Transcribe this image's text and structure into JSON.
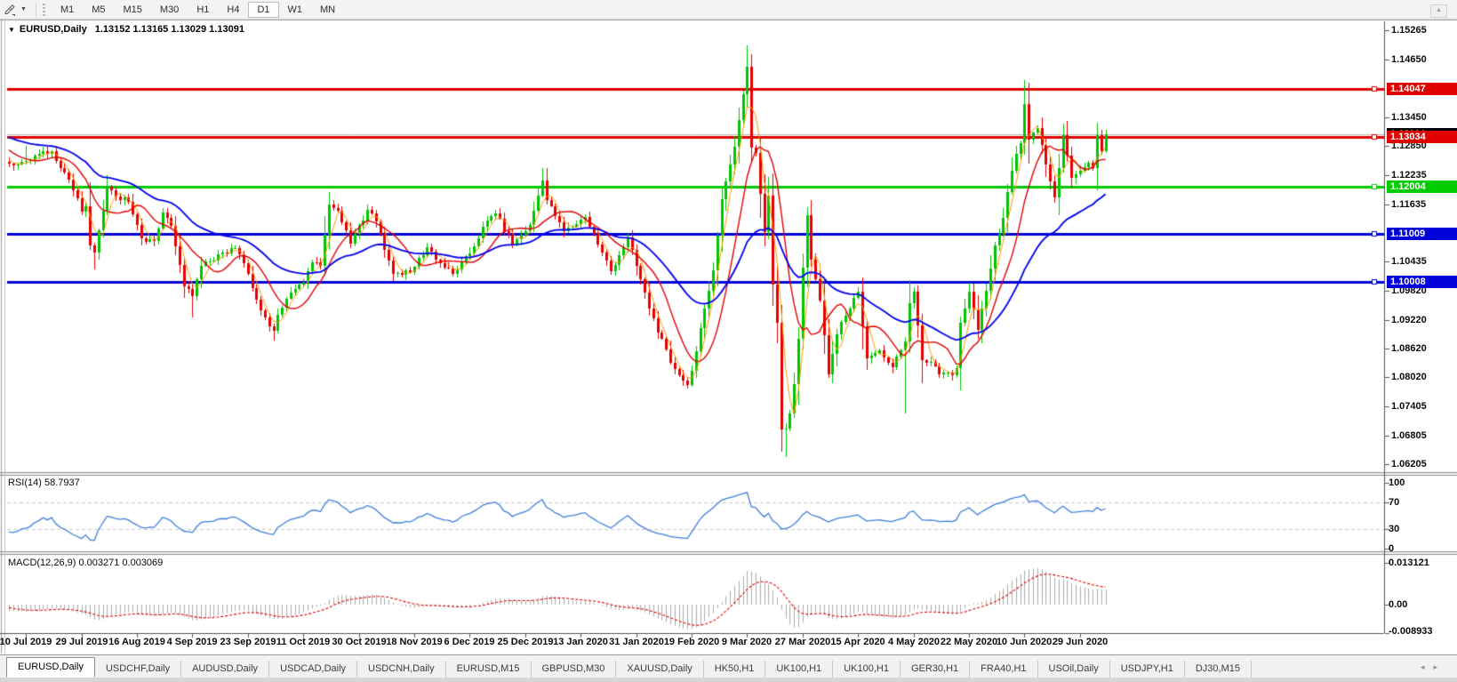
{
  "toolbar": {
    "timeframes": [
      "M1",
      "M5",
      "M15",
      "M30",
      "H1",
      "H4",
      "D1",
      "W1",
      "MN"
    ],
    "active_timeframe": "D1",
    "icons": {
      "drawing_tool": "pencil-draw-icon",
      "dropdown_caret": "▼",
      "scroll_up": "▲"
    }
  },
  "chart_title": {
    "caret": "▼",
    "symbol": "EURUSD,Daily",
    "ohlc_text": "1.13152 1.13165 1.13029 1.13091"
  },
  "chart_data": {
    "type": "candlestick",
    "symbol": "EURUSD",
    "timeframe": "Daily",
    "open": "1.13152",
    "high": "1.13165",
    "low": "1.13029",
    "close": "1.13091",
    "y_axis_ticks": [
      1.15265,
      1.1465,
      1.1345,
      1.1285,
      1.12235,
      1.11635,
      1.10435,
      1.0982,
      1.0922,
      1.0862,
      1.0802,
      1.07405,
      1.06805,
      1.06205
    ],
    "x_axis_dates": [
      "10 Jul 2019",
      "29 Jul 2019",
      "16 Aug 2019",
      "4 Sep 2019",
      "23 Sep 2019",
      "11 Oct 2019",
      "30 Oct 2019",
      "18 Nov 2019",
      "6 Dec 2019",
      "25 Dec 2019",
      "13 Jan 2020",
      "31 Jan 2020",
      "19 Feb 2020",
      "9 Mar 2020",
      "27 Mar 2020",
      "15 Apr 2020",
      "4 May 2020",
      "22 May 2020",
      "10 Jun 2020",
      "29 Jun 2020"
    ],
    "horizontal_lines": [
      {
        "price": 1.14047,
        "label": "1.14047",
        "color": "#e00000"
      },
      {
        "price": 1.13034,
        "label": "1.13034",
        "color": "#e00000"
      },
      {
        "price": 1.12004,
        "label": "1.12004",
        "color": "#00cc00"
      },
      {
        "price": 1.11009,
        "label": "1.11009",
        "color": "#0000d9"
      },
      {
        "price": 1.10008,
        "label": "1.10008",
        "color": "#0000d9"
      }
    ],
    "current_bid": {
      "price": 1.13091,
      "label": "1.13091",
      "badge_color": "#000000",
      "line_color": "#b9b9b9"
    },
    "candle_colors": {
      "up": "#00c400",
      "down": "#e60000"
    },
    "moving_averages": [
      {
        "name": "fast",
        "type": "sma",
        "period": 4,
        "color": "#ff9800"
      },
      {
        "name": "medium",
        "type": "sma",
        "period": 10,
        "color": "#e00000"
      },
      {
        "name": "slow",
        "type": "ema",
        "period": 34,
        "color": "#0000ee"
      }
    ],
    "price_anchors": [
      [
        0,
        1.1248
      ],
      [
        4,
        1.1253
      ],
      [
        7,
        1.1268
      ],
      [
        10,
        1.1274
      ],
      [
        14,
        1.1215
      ],
      [
        17,
        1.1148
      ],
      [
        18,
        1.1158
      ],
      [
        19,
        1.1077
      ],
      [
        20,
        1.1062
      ],
      [
        21,
        1.1108
      ],
      [
        23,
        1.12
      ],
      [
        25,
        1.118
      ],
      [
        28,
        1.1168
      ],
      [
        31,
        1.1092
      ],
      [
        34,
        1.1087
      ],
      [
        36,
        1.1145
      ],
      [
        38,
        1.1118
      ],
      [
        41,
        1.0992
      ],
      [
        43,
        1.0972
      ],
      [
        45,
        1.1035
      ],
      [
        48,
        1.1046
      ],
      [
        50,
        1.1063
      ],
      [
        53,
        1.1072
      ],
      [
        56,
        1.1017
      ],
      [
        59,
        1.0941
      ],
      [
        62,
        1.0899
      ],
      [
        63,
        1.0933
      ],
      [
        66,
        1.0979
      ],
      [
        69,
        1.1
      ],
      [
        71,
        1.1042
      ],
      [
        73,
        1.1034
      ],
      [
        75,
        1.1163
      ],
      [
        77,
        1.115
      ],
      [
        80,
        1.1081
      ],
      [
        84,
        1.1152
      ],
      [
        86,
        1.1127
      ],
      [
        90,
        1.1018
      ],
      [
        94,
        1.1021
      ],
      [
        98,
        1.1074
      ],
      [
        101,
        1.104
      ],
      [
        104,
        1.1018
      ],
      [
        108,
        1.1061
      ],
      [
        112,
        1.113
      ],
      [
        114,
        1.1144
      ],
      [
        118,
        1.1078
      ],
      [
        122,
        1.112
      ],
      [
        125,
        1.1212
      ],
      [
        126,
        1.1172
      ],
      [
        130,
        1.1106
      ],
      [
        135,
        1.1136
      ],
      [
        141,
        1.1024
      ],
      [
        145,
        1.1093
      ],
      [
        150,
        1.0946
      ],
      [
        155,
        1.0832
      ],
      [
        159,
        1.0786
      ],
      [
        161,
        1.0856
      ],
      [
        165,
        1.1026
      ],
      [
        167,
        1.1173
      ],
      [
        170,
        1.1284
      ],
      [
        173,
        1.145
      ],
      [
        174,
        1.1281
      ],
      [
        175,
        1.127
      ],
      [
        176,
        1.1184
      ],
      [
        177,
        1.1105
      ],
      [
        178,
        1.1181
      ],
      [
        179,
        1.0995
      ],
      [
        180,
        1.0916
      ],
      [
        181,
        1.0693
      ],
      [
        182,
        1.0695
      ],
      [
        183,
        1.0726
      ],
      [
        184,
        1.0788
      ],
      [
        185,
        1.0882
      ],
      [
        186,
        1.103
      ],
      [
        187,
        1.114
      ],
      [
        188,
        1.1048
      ],
      [
        190,
        1.0963
      ],
      [
        192,
        1.0808
      ],
      [
        194,
        1.0892
      ],
      [
        196,
        1.0931
      ],
      [
        199,
        1.098
      ],
      [
        201,
        1.0841
      ],
      [
        204,
        1.0858
      ],
      [
        207,
        1.0822
      ],
      [
        210,
        1.0876
      ],
      [
        211,
        1.0956
      ],
      [
        212,
        1.098
      ],
      [
        214,
        1.0838
      ],
      [
        216,
        1.0834
      ],
      [
        218,
        1.0808
      ],
      [
        221,
        1.0806
      ],
      [
        222,
        1.0821
      ],
      [
        223,
        1.0915
      ],
      [
        225,
        1.0981
      ],
      [
        227,
        1.0901
      ],
      [
        229,
        1.0983
      ],
      [
        231,
        1.1077
      ],
      [
        232,
        1.1101
      ],
      [
        233,
        1.1134
      ],
      [
        235,
        1.1234
      ],
      [
        237,
        1.1291
      ],
      [
        238,
        1.1373
      ],
      [
        239,
        1.1298
      ],
      [
        241,
        1.1322
      ],
      [
        243,
        1.1246
      ],
      [
        245,
        1.1177
      ],
      [
        247,
        1.1308
      ],
      [
        249,
        1.1218
      ],
      [
        251,
        1.1234
      ],
      [
        253,
        1.125
      ],
      [
        254,
        1.1239
      ],
      [
        255,
        1.1308
      ],
      [
        256,
        1.1274
      ],
      [
        257,
        1.1309
      ]
    ],
    "wick_overrides": {
      "4": {
        "h": 1.1285
      },
      "20": {
        "l": 1.1027
      },
      "43": {
        "l": 1.0926
      },
      "62": {
        "l": 1.0879
      },
      "75": {
        "h": 1.1179
      },
      "125": {
        "h": 1.1239
      },
      "159": {
        "l": 1.0778
      },
      "173": {
        "h": 1.1495
      },
      "181": {
        "l": 1.0655
      },
      "182": {
        "l": 1.0636
      },
      "210": {
        "l": 1.0727
      },
      "238": {
        "h": 1.1422
      }
    },
    "indicators": {
      "rsi": {
        "label": "RSI(14) 58.7937",
        "period": 14,
        "current": 58.7937,
        "levels": [
          100,
          70,
          30,
          0
        ],
        "line_color": "#3f7fdb",
        "level_line_color": "#c9c9c9"
      },
      "macd": {
        "label": "MACD(12,26,9) 0.003271 0.003069",
        "fast": 12,
        "slow": 26,
        "signal": 9,
        "current_macd": 0.003271,
        "current_signal": 0.003069,
        "axis_ticks": [
          {
            "value": 0.013121,
            "label": "0.013121"
          },
          {
            "value": 0,
            "label": "0.00"
          },
          {
            "value": -0.008933,
            "label": "-0.008933"
          }
        ],
        "histogram_color": "#ababab",
        "signal_color": "#e00000"
      }
    }
  },
  "tabs": {
    "items": [
      {
        "label": "EURUSD,Daily",
        "active": true
      },
      {
        "label": "USDCHF,Daily",
        "active": false
      },
      {
        "label": "AUDUSD,Daily",
        "active": false
      },
      {
        "label": "USDCAD,Daily",
        "active": false
      },
      {
        "label": "USDCNH,Daily",
        "active": false
      },
      {
        "label": "EURUSD,M15",
        "active": false
      },
      {
        "label": "GBPUSD,M30",
        "active": false
      },
      {
        "label": "XAUUSD,Daily",
        "active": false
      },
      {
        "label": "HK50,H1",
        "active": false
      },
      {
        "label": "UK100,H1",
        "active": false
      },
      {
        "label": "UK100,H1",
        "active": false
      },
      {
        "label": "GER30,H1",
        "active": false
      },
      {
        "label": "FRA40,H1",
        "active": false
      },
      {
        "label": "USOil,Daily",
        "active": false
      },
      {
        "label": "USDJPY,H1",
        "active": false
      },
      {
        "label": "DJ30,M15",
        "active": false
      }
    ],
    "scroll_left_icon": "◂",
    "scroll_right_icon": "▸"
  }
}
